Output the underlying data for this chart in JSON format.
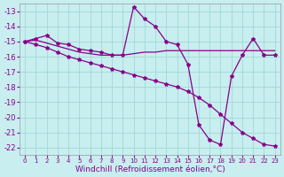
{
  "background_color": "#c8eef0",
  "grid_color": "#a0d8d8",
  "line_color": "#880088",
  "xlabel": "Windchill (Refroidissement éolien,°C)",
  "xlabel_fontsize": 6.5,
  "yticks": [
    -13,
    -14,
    -15,
    -16,
    -17,
    -18,
    -19,
    -20,
    -21,
    -22
  ],
  "xticks": [
    0,
    1,
    2,
    3,
    4,
    5,
    6,
    7,
    8,
    9,
    10,
    11,
    12,
    13,
    14,
    15,
    16,
    17,
    18,
    19,
    20,
    21,
    22,
    23
  ],
  "ylim": [
    -22.5,
    -12.5
  ],
  "xlim": [
    -0.5,
    23.5
  ],
  "series1_x": [
    0,
    1,
    2,
    3,
    4,
    5,
    6,
    7,
    8,
    9,
    10,
    11,
    12,
    13,
    14,
    15,
    16,
    17,
    18,
    19,
    20,
    21,
    22,
    23
  ],
  "series1_y": [
    -15.0,
    -14.8,
    -14.6,
    -15.1,
    -15.2,
    -15.5,
    -15.6,
    -15.7,
    -15.9,
    -15.9,
    -12.7,
    -13.5,
    -14.0,
    -15.0,
    -15.2,
    -16.5,
    -20.5,
    -21.5,
    -21.8,
    -17.3,
    -15.9,
    -14.8,
    -15.9,
    -15.9
  ],
  "series2_x": [
    0,
    1,
    2,
    3,
    4,
    5,
    6,
    7,
    8,
    9,
    10,
    11,
    12,
    13,
    14,
    15,
    16,
    17,
    18,
    19,
    20,
    21,
    22,
    23
  ],
  "series2_y": [
    -15.0,
    -14.9,
    -15.1,
    -15.3,
    -15.5,
    -15.7,
    -15.8,
    -15.9,
    -15.9,
    -15.9,
    -15.8,
    -15.7,
    -15.7,
    -15.6,
    -15.6,
    -15.6,
    -15.6,
    -15.6,
    -15.6,
    -15.6,
    -15.6,
    -15.6,
    -15.6,
    -15.6
  ],
  "series3_x": [
    0,
    1,
    2,
    3,
    4,
    5,
    6,
    7,
    8,
    9,
    10,
    11,
    12,
    13,
    14,
    15,
    16,
    17,
    18,
    19,
    20,
    21,
    22,
    23
  ],
  "series3_y": [
    -15.0,
    -15.2,
    -15.4,
    -15.7,
    -16.0,
    -16.2,
    -16.4,
    -16.6,
    -16.8,
    -17.0,
    -17.2,
    -17.4,
    -17.6,
    -17.8,
    -18.0,
    -18.3,
    -18.7,
    -19.2,
    -19.8,
    -20.4,
    -21.0,
    -21.4,
    -21.8,
    -21.9
  ]
}
